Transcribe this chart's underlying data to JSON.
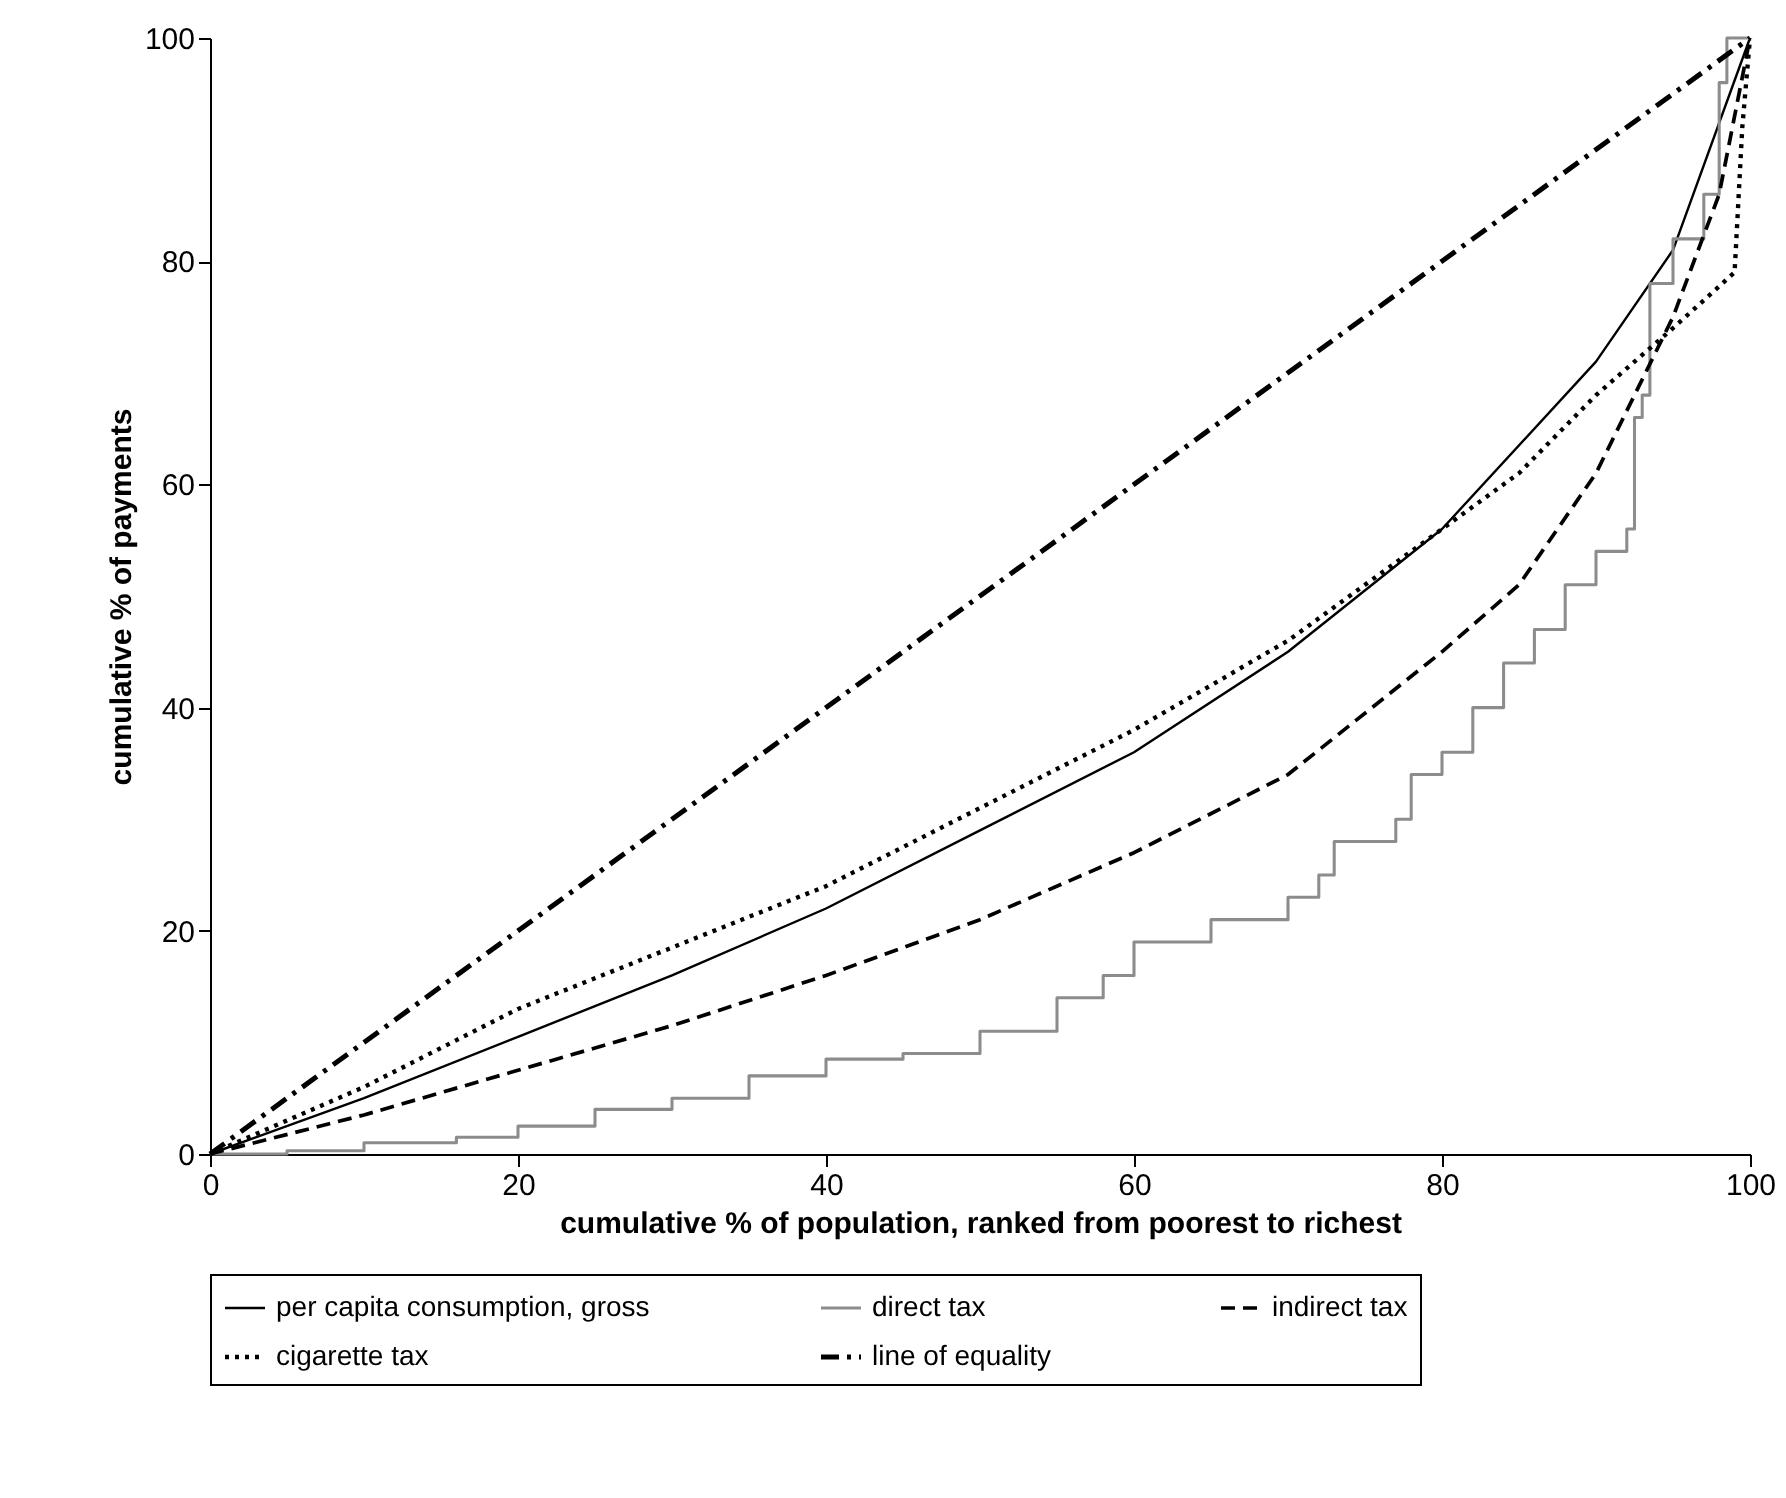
{
  "chart_data": {
    "type": "line",
    "xlabel": "cumulative % of population, ranked from poorest to richest",
    "ylabel": "cumulative % of payments",
    "xlim": [
      0,
      100
    ],
    "ylim": [
      0,
      100
    ],
    "xticks": [
      0,
      20,
      40,
      60,
      80,
      100
    ],
    "yticks": [
      0,
      20,
      40,
      60,
      80,
      100
    ],
    "grid": false,
    "legend": "bottom",
    "marker": "none",
    "series": [
      {
        "name": "per capita consumption, gross",
        "color": "#000000",
        "line_style": "solid",
        "x": [
          0,
          10,
          20,
          30,
          40,
          50,
          60,
          70,
          80,
          90,
          95,
          100
        ],
        "values": [
          0,
          5,
          10.5,
          16,
          22,
          29,
          36,
          45,
          56,
          71,
          81,
          100
        ]
      },
      {
        "name": "direct tax",
        "type": "step",
        "color": "#8c8c8c",
        "line_style": "solid",
        "x": [
          0,
          5,
          10,
          16,
          20,
          25,
          30,
          35,
          40,
          45,
          50,
          55,
          58,
          60,
          65,
          70,
          72,
          73,
          77,
          78,
          80,
          82,
          84,
          86,
          88,
          90,
          92,
          92.5,
          93,
          93.5,
          95,
          97,
          98,
          98.5,
          100
        ],
        "values": [
          0,
          0.3,
          1,
          1.5,
          2.5,
          4,
          5,
          7,
          8.5,
          9,
          11,
          14,
          16,
          19,
          21,
          23,
          25,
          28,
          30,
          34,
          36,
          40,
          44,
          47,
          51,
          54,
          56,
          66,
          68,
          78,
          82,
          86,
          96,
          100,
          100
        ]
      },
      {
        "name": "indirect tax",
        "color": "#000000",
        "line_style": "dashed",
        "x": [
          0,
          10,
          20,
          30,
          40,
          50,
          60,
          70,
          80,
          85,
          90,
          95,
          98,
          100
        ],
        "values": [
          0,
          3.5,
          7.5,
          11.5,
          16,
          21,
          27,
          34,
          45,
          51,
          61,
          75,
          86,
          100
        ]
      },
      {
        "name": "cigarette tax",
        "color": "#000000",
        "line_style": "dotted",
        "x": [
          0,
          10,
          20,
          30,
          40,
          50,
          60,
          70,
          75,
          80,
          85,
          90,
          95,
          99,
          99.5,
          100
        ],
        "values": [
          0,
          6,
          13,
          18.5,
          24,
          31,
          38,
          46,
          51,
          56,
          61,
          68,
          74,
          79,
          92,
          100
        ]
      },
      {
        "name": "line of equality",
        "color": "#000000",
        "line_style": "dashdot",
        "x": [
          0,
          100
        ],
        "values": [
          0,
          100
        ]
      }
    ]
  }
}
